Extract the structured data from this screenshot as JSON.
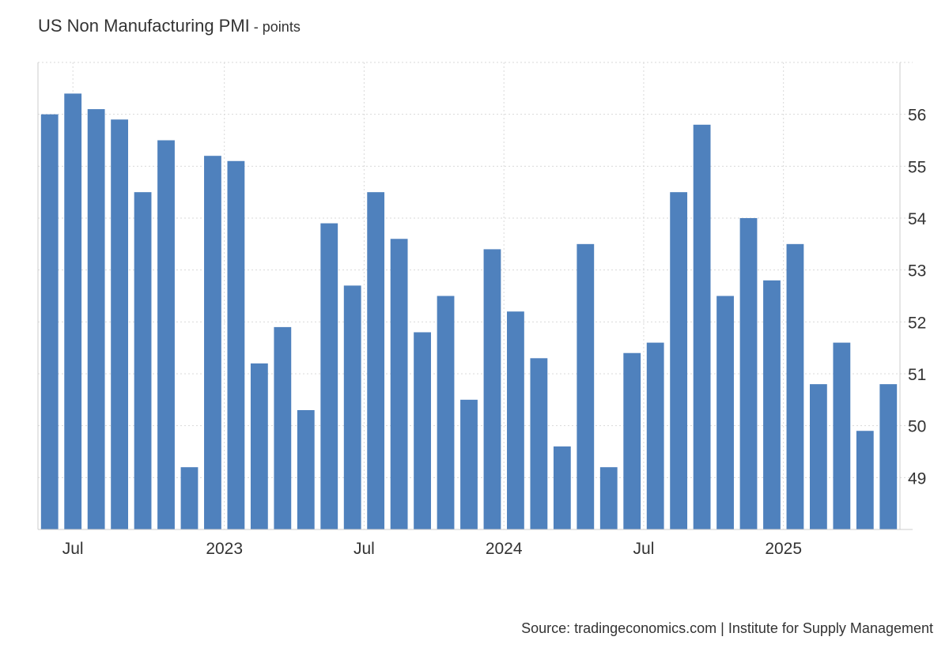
{
  "title": "US Non Manufacturing PMI",
  "unit": "points",
  "unit_separator": " - ",
  "source": "Source: tradingeconomics.com | Institute for Supply Management",
  "colors": {
    "bar": "#4f81bd",
    "grid": "#d9d9d9",
    "axis": "#cccccc",
    "text": "#333333"
  },
  "chart_data": {
    "type": "bar",
    "values": [
      56.0,
      56.4,
      56.1,
      55.9,
      54.5,
      55.5,
      49.2,
      55.2,
      55.1,
      51.2,
      51.9,
      50.3,
      53.9,
      52.7,
      54.5,
      53.6,
      51.8,
      52.5,
      50.5,
      53.4,
      52.2,
      51.3,
      49.6,
      53.5,
      49.2,
      51.4,
      51.6,
      54.5,
      55.8,
      52.5,
      54.0,
      52.8,
      53.5,
      50.8,
      51.6,
      49.9,
      50.8
    ],
    "x_tick_labels": [
      {
        "label": "Jul",
        "index": 1
      },
      {
        "label": "2023",
        "index": 7.5
      },
      {
        "label": "Jul",
        "index": 13.5
      },
      {
        "label": "2024",
        "index": 19.5
      },
      {
        "label": "Jul",
        "index": 25.5
      },
      {
        "label": "2025",
        "index": 31.5
      }
    ],
    "y_ticks": [
      49,
      50,
      51,
      52,
      53,
      54,
      55,
      56
    ],
    "ylim": [
      48,
      57
    ],
    "y_axis_position": "right",
    "grid": true,
    "legend": false
  }
}
